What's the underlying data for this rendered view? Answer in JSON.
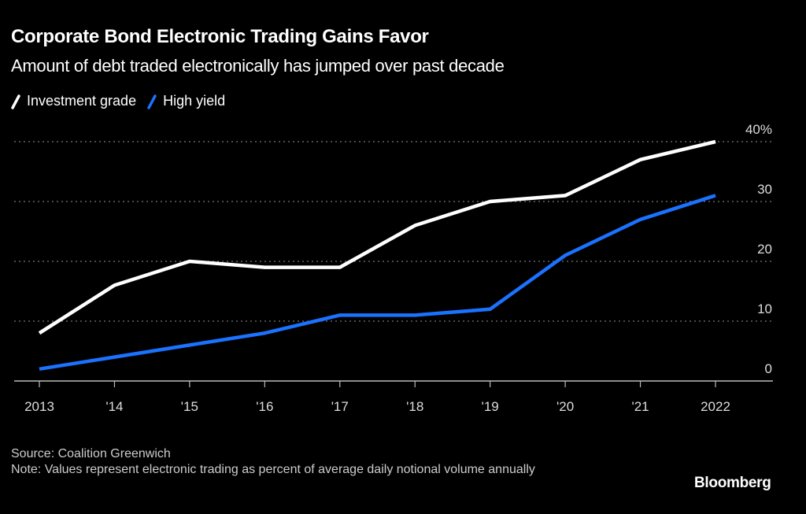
{
  "header": {
    "title": "Corporate Bond Electronic Trading Gains Favor",
    "subtitle": "Amount of debt traded electronically has jumped over past decade"
  },
  "legend": [
    {
      "label": "Investment grade",
      "color": "#ffffff"
    },
    {
      "label": "High yield",
      "color": "#1a72ff"
    }
  ],
  "chart_data": {
    "type": "line",
    "title": "Corporate Bond Electronic Trading Gains Favor",
    "subtitle": "Amount of debt traded electronically has jumped over past decade",
    "xlabel": "",
    "ylabel": "",
    "x": [
      "2013",
      "'14",
      "'15",
      "'16",
      "'17",
      "'18",
      "'19",
      "'20",
      "'21",
      "2022"
    ],
    "yticks": [
      "0",
      "10",
      "20",
      "30",
      "40%"
    ],
    "ylim": [
      0,
      40
    ],
    "grid": true,
    "legend_position": "top-left",
    "series": [
      {
        "name": "Investment grade",
        "color": "#ffffff",
        "values": [
          8,
          16,
          20,
          19,
          19,
          26,
          30,
          31,
          37,
          40
        ]
      },
      {
        "name": "High yield",
        "color": "#1a72ff",
        "values": [
          2,
          4,
          6,
          8,
          11,
          11,
          12,
          21,
          27,
          31
        ]
      }
    ]
  },
  "footer": {
    "source": "Source: Coalition Greenwich",
    "note": "Note: Values represent electronic trading as percent of average daily notional volume annually",
    "brand": "Bloomberg"
  }
}
